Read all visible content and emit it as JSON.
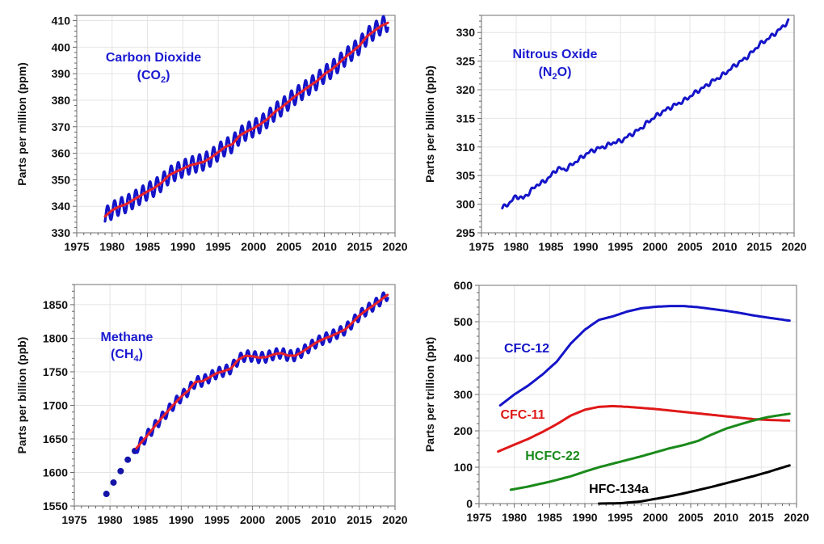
{
  "chart_data": [
    {
      "type": "line",
      "title": "",
      "annotation": {
        "name": "Carbon Dioxide",
        "formula_base": "CO",
        "formula_sub": "2",
        "color": "#1a1ad0"
      },
      "xlabel": "",
      "ylabel": "Parts per million (ppm)",
      "xlim": [
        1975,
        2020
      ],
      "ylim": [
        330,
        412
      ],
      "xticks": [
        1975,
        1980,
        1985,
        1990,
        1995,
        2000,
        2005,
        2010,
        2015,
        2020
      ],
      "yticks": [
        330,
        340,
        350,
        360,
        370,
        380,
        390,
        400,
        410
      ],
      "grid": true,
      "series": [
        {
          "kind": "monthly",
          "color": "#1414c8",
          "seasonal_amplitude": 3.2,
          "x": [
            1979,
            1980,
            1981,
            1982,
            1983,
            1984,
            1985,
            1986,
            1987,
            1988,
            1989,
            1990,
            1991,
            1992,
            1993,
            1994,
            1995,
            1996,
            1997,
            1998,
            1999,
            2000,
            2001,
            2002,
            2003,
            2004,
            2005,
            2006,
            2007,
            2008,
            2009,
            2010,
            2011,
            2012,
            2013,
            2014,
            2015,
            2016,
            2017,
            2018,
            2019
          ],
          "y": [
            336.2,
            338.5,
            339.9,
            340.8,
            342.4,
            344.0,
            345.6,
            347.0,
            348.9,
            351.6,
            353.0,
            354.2,
            355.4,
            356.1,
            356.8,
            358.4,
            360.4,
            362.4,
            363.4,
            366.6,
            368.2,
            369.4,
            371.0,
            373.0,
            375.6,
            377.4,
            379.6,
            381.8,
            383.6,
            385.5,
            387.3,
            389.8,
            391.5,
            393.8,
            396.3,
            398.4,
            400.6,
            404.0,
            406.0,
            408.0,
            409.2
          ]
        },
        {
          "kind": "trend",
          "color": "#e8202a",
          "x": [
            1979,
            1980,
            1981,
            1982,
            1983,
            1984,
            1985,
            1986,
            1987,
            1988,
            1989,
            1990,
            1991,
            1992,
            1993,
            1994,
            1995,
            1996,
            1997,
            1998,
            1999,
            2000,
            2001,
            2002,
            2003,
            2004,
            2005,
            2006,
            2007,
            2008,
            2009,
            2010,
            2011,
            2012,
            2013,
            2014,
            2015,
            2016,
            2017,
            2018,
            2019
          ],
          "y": [
            336.2,
            338.5,
            339.9,
            340.8,
            342.4,
            344.0,
            345.6,
            347.0,
            348.9,
            351.6,
            353.0,
            354.2,
            355.4,
            356.1,
            356.8,
            358.4,
            360.4,
            362.4,
            363.4,
            366.6,
            368.2,
            369.4,
            371.0,
            373.0,
            375.6,
            377.4,
            379.6,
            381.8,
            383.6,
            385.5,
            387.3,
            389.8,
            391.5,
            393.8,
            396.3,
            398.4,
            400.6,
            404.0,
            406.0,
            408.0,
            409.2
          ]
        }
      ]
    },
    {
      "type": "line",
      "title": "",
      "annotation": {
        "name": "Nitrous Oxide",
        "formula_base": "N",
        "formula_sub": "2",
        "formula_tail": "O",
        "color": "#1a1ad0"
      },
      "xlabel": "",
      "ylabel": "Parts per billion (ppb)",
      "xlim": [
        1975,
        2020
      ],
      "ylim": [
        295,
        333
      ],
      "xticks": [
        1975,
        1980,
        1985,
        1990,
        1995,
        2000,
        2005,
        2010,
        2015,
        2020
      ],
      "yticks": [
        295,
        300,
        305,
        310,
        315,
        320,
        325,
        330
      ],
      "grid": true,
      "series": [
        {
          "kind": "noisy",
          "color": "#1414c8",
          "seasonal_amplitude": 0.4,
          "x": [
            1978,
            1979,
            1980,
            1981,
            1982,
            1983,
            1984,
            1985,
            1986,
            1987,
            1988,
            1989,
            1990,
            1991,
            1992,
            1993,
            1994,
            1995,
            1996,
            1997,
            1998,
            1999,
            2000,
            2001,
            2002,
            2003,
            2004,
            2005,
            2006,
            2007,
            2008,
            2009,
            2010,
            2011,
            2012,
            2013,
            2014,
            2015,
            2016,
            2017,
            2018,
            2019.2
          ],
          "y": [
            299.3,
            300.2,
            301.4,
            301.0,
            302.2,
            303.4,
            303.9,
            305.0,
            306.3,
            306.0,
            306.9,
            307.8,
            308.7,
            309.4,
            309.8,
            310.2,
            310.8,
            311.0,
            311.8,
            312.5,
            313.3,
            314.4,
            315.3,
            316.1,
            316.8,
            317.4,
            318.0,
            318.8,
            319.7,
            320.4,
            321.3,
            322.0,
            322.8,
            323.8,
            324.7,
            325.5,
            326.6,
            327.9,
            328.7,
            329.6,
            330.6,
            332.0
          ]
        }
      ]
    },
    {
      "type": "line",
      "title": "",
      "annotation": {
        "name": "Methane",
        "formula_base": "CH",
        "formula_sub": "4",
        "color": "#1a1ad0"
      },
      "xlabel": "",
      "ylabel": "Parts per billion (ppb)",
      "xlim": [
        1975,
        2020
      ],
      "ylim": [
        1550,
        1880
      ],
      "xticks": [
        1975,
        1980,
        1985,
        1990,
        1995,
        2000,
        2005,
        2010,
        2015,
        2020
      ],
      "yticks": [
        1550,
        1600,
        1650,
        1700,
        1750,
        1800,
        1850
      ],
      "grid": true,
      "series": [
        {
          "kind": "points",
          "color": "#1414a8",
          "x": [
            1979.5,
            1980.5,
            1981.5,
            1982.5,
            1983.5
          ],
          "y": [
            1568,
            1585,
            1602,
            1619,
            1632
          ]
        },
        {
          "kind": "monthly",
          "color": "#1414c8",
          "seasonal_amplitude": 8,
          "x": [
            1983.7,
            1985,
            1986,
            1987,
            1988,
            1989,
            1990,
            1991,
            1992,
            1993,
            1994,
            1995,
            1996,
            1997,
            1998,
            1999,
            2000,
            2001,
            2002,
            2003,
            2004,
            2005,
            2006,
            2007,
            2008,
            2009,
            2010,
            2011,
            2012,
            2013,
            2014,
            2015,
            2016,
            2017,
            2018,
            2019
          ],
          "y": [
            1636,
            1652,
            1665,
            1678,
            1690,
            1702,
            1713,
            1722,
            1735,
            1736,
            1742,
            1748,
            1751,
            1755,
            1768,
            1774,
            1773,
            1771,
            1772,
            1776,
            1778,
            1774,
            1774,
            1780,
            1787,
            1794,
            1799,
            1803,
            1808,
            1813,
            1823,
            1834,
            1842,
            1849,
            1857,
            1865
          ]
        },
        {
          "kind": "trend",
          "color": "#e8202a",
          "x": [
            1983.7,
            1985,
            1986,
            1987,
            1988,
            1989,
            1990,
            1991,
            1992,
            1993,
            1994,
            1995,
            1996,
            1997,
            1998,
            1999,
            2000,
            2001,
            2002,
            2003,
            2004,
            2005,
            2006,
            2007,
            2008,
            2009,
            2010,
            2011,
            2012,
            2013,
            2014,
            2015,
            2016,
            2017,
            2018,
            2019
          ],
          "y": [
            1636,
            1652,
            1665,
            1678,
            1690,
            1702,
            1713,
            1722,
            1735,
            1736,
            1742,
            1748,
            1751,
            1755,
            1768,
            1774,
            1773,
            1771,
            1772,
            1776,
            1778,
            1774,
            1774,
            1780,
            1787,
            1794,
            1799,
            1803,
            1808,
            1813,
            1823,
            1834,
            1842,
            1849,
            1857,
            1865
          ]
        }
      ]
    },
    {
      "type": "line",
      "title": "",
      "xlabel": "",
      "ylabel": "Parts per trillion (ppt)",
      "xlim": [
        1975,
        2020
      ],
      "ylim": [
        0,
        600
      ],
      "xticks": [
        1975,
        1980,
        1985,
        1990,
        1995,
        2000,
        2005,
        2010,
        2015,
        2020
      ],
      "yticks": [
        0,
        100,
        200,
        300,
        400,
        500,
        600
      ],
      "grid": true,
      "series": [
        {
          "name": "CFC-12",
          "color": "#1414c8",
          "x": [
            1978,
            1980,
            1982,
            1984,
            1986,
            1988,
            1990,
            1992,
            1994,
            1996,
            1998,
            2000,
            2002,
            2004,
            2006,
            2008,
            2010,
            2012,
            2014,
            2016,
            2019
          ],
          "y": [
            270,
            300,
            325,
            355,
            390,
            440,
            478,
            505,
            515,
            528,
            537,
            541,
            543,
            543,
            540,
            535,
            530,
            524,
            517,
            511,
            503
          ]
        },
        {
          "name": "CFC-11",
          "color": "#e01818",
          "x": [
            1977.7,
            1980,
            1982,
            1984,
            1986,
            1988,
            1990,
            1992,
            1994,
            1996,
            1998,
            2000,
            2002,
            2004,
            2006,
            2008,
            2010,
            2012,
            2014,
            2016,
            2019
          ],
          "y": [
            143,
            162,
            178,
            197,
            218,
            242,
            258,
            266,
            268,
            266,
            263,
            260,
            256,
            252,
            248,
            244,
            240,
            236,
            232,
            230,
            228
          ]
        },
        {
          "name": "HCFC-22",
          "color": "#1a8a1a",
          "x": [
            1979.5,
            1982,
            1985,
            1988,
            1990,
            1992,
            1994,
            1996,
            1998,
            2000,
            2002,
            2004,
            2006,
            2008,
            2010,
            2012,
            2014,
            2016,
            2019
          ],
          "y": [
            38,
            47,
            60,
            75,
            88,
            100,
            110,
            120,
            130,
            141,
            152,
            161,
            172,
            190,
            206,
            218,
            229,
            238,
            247
          ]
        },
        {
          "name": "HFC-134a",
          "color": "#000000",
          "x": [
            1992,
            1995,
            1998,
            2000,
            2002,
            2004,
            2006,
            2008,
            2010,
            2012,
            2014,
            2016,
            2019
          ],
          "y": [
            0,
            1,
            6,
            13,
            20,
            28,
            37,
            46,
            56,
            66,
            76,
            87,
            105
          ]
        }
      ]
    }
  ]
}
